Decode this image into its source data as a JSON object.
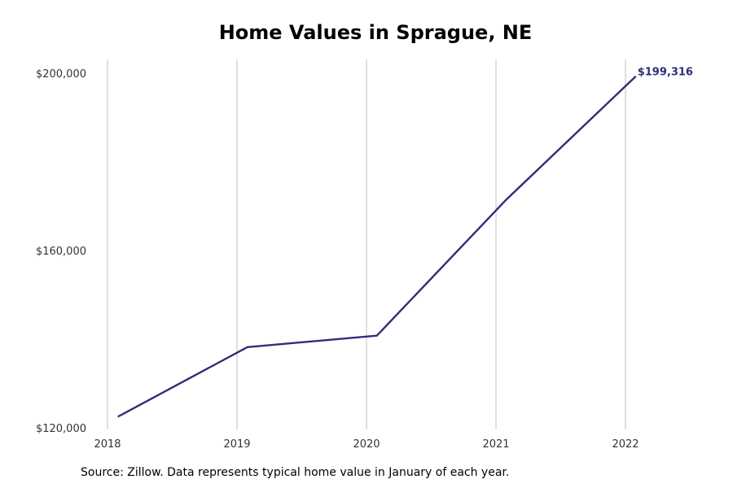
{
  "chart_data": {
    "type": "line",
    "title": "Home Values in Sprague, NE",
    "xlabel": "",
    "ylabel": "",
    "x_ticks": [
      "2018",
      "2019",
      "2020",
      "2021",
      "2022"
    ],
    "y_ticks": [
      {
        "value": 120000,
        "label": "$120,000"
      },
      {
        "value": 160000,
        "label": "$160,000"
      },
      {
        "value": 200000,
        "label": "$200,000"
      }
    ],
    "xlim": [
      2018,
      2022.7
    ],
    "ylim": [
      120000,
      203000
    ],
    "series": [
      {
        "color": "#2e2e7a",
        "points": [
          {
            "x": "Jan 2018",
            "y": 122500
          },
          {
            "x": "Jan 2019",
            "y": 138200
          },
          {
            "x": "Jan 2020",
            "y": 140800
          },
          {
            "x": "Jan 2021",
            "y": 171500
          },
          {
            "x": "Jan 2022",
            "y": 199316
          }
        ]
      }
    ],
    "end_label": "$199,316",
    "grid": "vertical",
    "legend": "none"
  },
  "footer": {
    "source": "Source: Zillow. Data represents typical home value in January of each year."
  },
  "colors": {
    "line": "#2e2e7a",
    "grid": "#b0b0b0",
    "tick_text": "#333333"
  }
}
